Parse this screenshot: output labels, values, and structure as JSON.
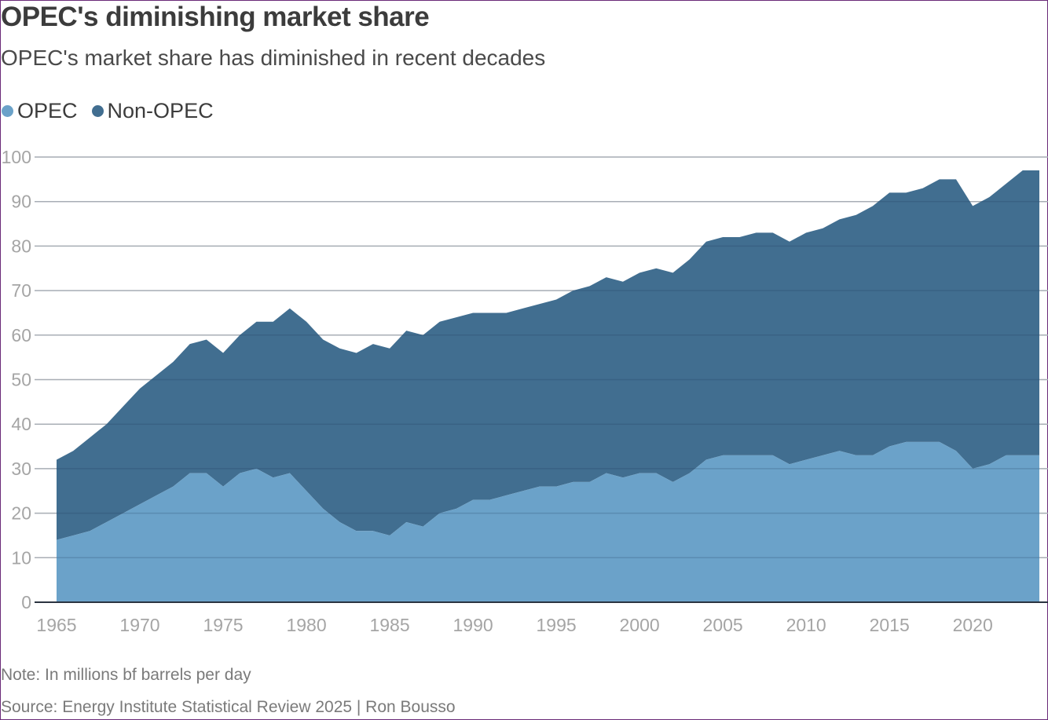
{
  "chart_data": {
    "type": "area",
    "stacked": true,
    "title": "OPEC's diminishing market share",
    "subtitle": "OPEC's market share has diminished in recent decades",
    "xlabel": "",
    "ylabel": "",
    "ylim": [
      0,
      100
    ],
    "xlim": [
      1965,
      2024
    ],
    "grid": true,
    "legend_position": "top-left",
    "y_ticks": [
      "0",
      "10",
      "20",
      "30",
      "40",
      "50",
      "60",
      "70",
      "80",
      "90",
      "100"
    ],
    "x_ticks": [
      "1965",
      "1970",
      "1975",
      "1980",
      "1985",
      "1990",
      "1995",
      "2000",
      "2005",
      "2010",
      "2015",
      "2020"
    ],
    "x": [
      1965,
      1966,
      1967,
      1968,
      1969,
      1970,
      1971,
      1972,
      1973,
      1974,
      1975,
      1976,
      1977,
      1978,
      1979,
      1980,
      1981,
      1982,
      1983,
      1984,
      1985,
      1986,
      1987,
      1988,
      1989,
      1990,
      1991,
      1992,
      1993,
      1994,
      1995,
      1996,
      1997,
      1998,
      1999,
      2000,
      2001,
      2002,
      2003,
      2004,
      2005,
      2006,
      2007,
      2008,
      2009,
      2010,
      2011,
      2012,
      2013,
      2014,
      2015,
      2016,
      2017,
      2018,
      2019,
      2020,
      2021,
      2022,
      2023,
      2024
    ],
    "series": [
      {
        "name": "OPEC",
        "color": "#6ba2c9",
        "values": [
          14,
          15,
          16,
          18,
          20,
          22,
          24,
          26,
          29,
          29,
          26,
          29,
          30,
          28,
          29,
          25,
          21,
          18,
          16,
          16,
          15,
          18,
          17,
          20,
          21,
          23,
          23,
          24,
          25,
          26,
          26,
          27,
          27,
          29,
          28,
          29,
          29,
          27,
          29,
          32,
          33,
          33,
          33,
          33,
          31,
          32,
          33,
          34,
          33,
          33,
          35,
          36,
          36,
          36,
          34,
          30,
          31,
          33,
          33,
          33
        ]
      },
      {
        "name": "Non-OPEC",
        "color": "#416e90",
        "values": [
          18,
          19,
          21,
          22,
          24,
          26,
          27,
          28,
          29,
          30,
          30,
          31,
          33,
          35,
          37,
          38,
          38,
          39,
          40,
          42,
          42,
          43,
          43,
          43,
          43,
          42,
          42,
          41,
          41,
          41,
          42,
          43,
          44,
          44,
          44,
          45,
          46,
          47,
          48,
          49,
          49,
          49,
          50,
          50,
          50,
          51,
          51,
          52,
          54,
          56,
          57,
          56,
          57,
          59,
          61,
          59,
          60,
          61,
          64,
          64
        ]
      }
    ]
  },
  "legend": {
    "items": [
      {
        "label": "OPEC",
        "color": "#6ba2c9"
      },
      {
        "label": "Non-OPEC",
        "color": "#416e90"
      }
    ]
  },
  "footer": {
    "note": "Note: In millions bf barrels per day",
    "source": "Source: Energy Institute Statistical Review 2025 | Ron Bousso"
  }
}
